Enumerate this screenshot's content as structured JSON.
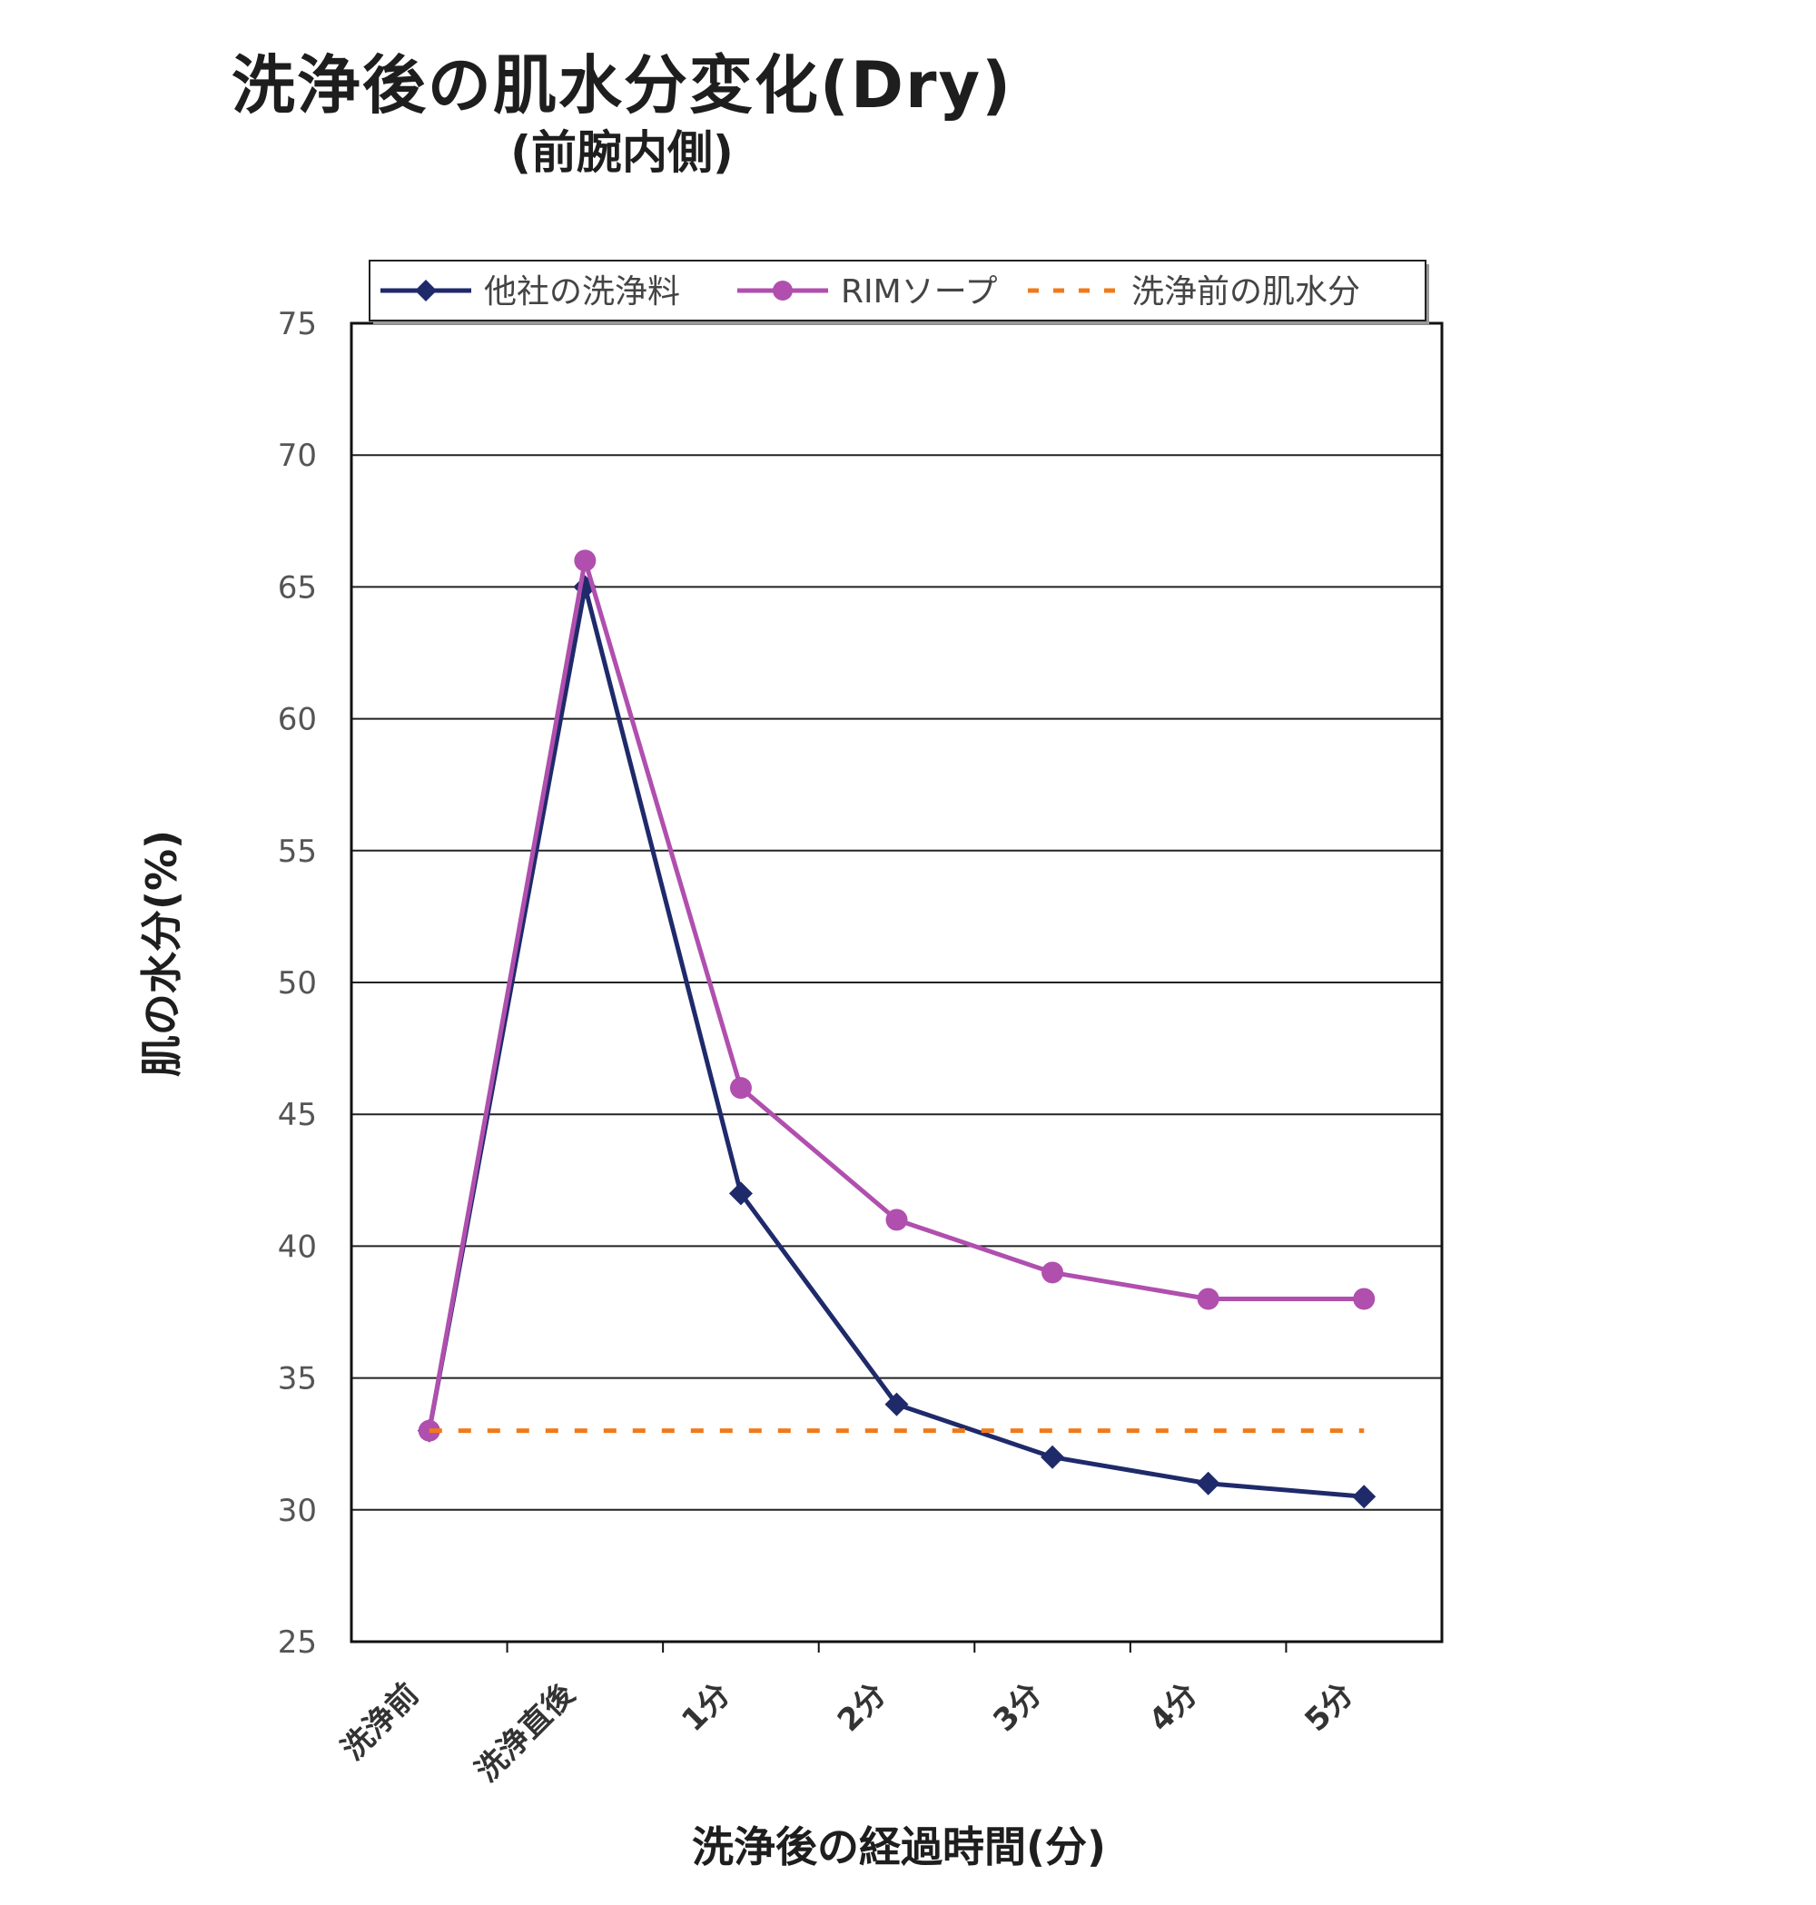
{
  "chart_data": {
    "type": "line",
    "title": "洗浄後の肌水分変化(Dry)",
    "subtitle": "(前腕内側)",
    "xlabel": "洗浄後の経過時間(分)",
    "ylabel": "肌の水分(%)",
    "categories": [
      "洗浄前",
      "洗浄直後",
      "1分",
      "2分",
      "3分",
      "4分",
      "5分"
    ],
    "ylim": [
      25,
      75
    ],
    "yticks": [
      25,
      30,
      35,
      40,
      45,
      50,
      55,
      60,
      65,
      70,
      75
    ],
    "grid": true,
    "legend_position": "top",
    "series": [
      {
        "name": "他社の洗浄料",
        "color": "#1f2a6b",
        "marker": "diamond",
        "style": "solid",
        "values": [
          33,
          65,
          42,
          34,
          32,
          31,
          30.5
        ]
      },
      {
        "name": "RIMソープ",
        "color": "#b04fae",
        "marker": "circle",
        "style": "solid",
        "values": [
          33,
          66,
          46,
          41,
          39,
          38,
          38
        ]
      },
      {
        "name": "洗浄前の肌水分",
        "color": "#f07a1a",
        "marker": "none",
        "style": "dashed",
        "values": [
          33,
          33,
          33,
          33,
          33,
          33,
          33
        ]
      }
    ]
  }
}
